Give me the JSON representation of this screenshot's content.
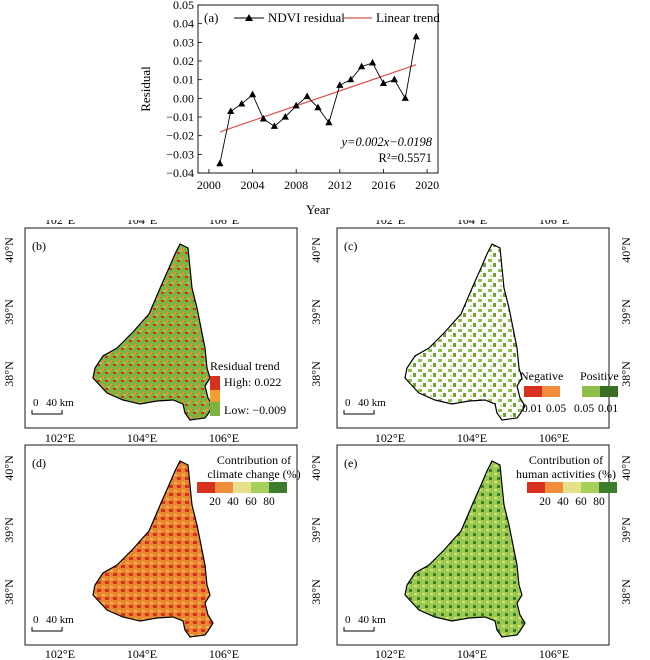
{
  "chart_data": [
    {
      "type": "line",
      "panel_label": "(a)",
      "xlabel": "Year",
      "ylabel": "Residual",
      "xlim": [
        1999,
        2021
      ],
      "ylim": [
        -0.04,
        0.05
      ],
      "xticks": [
        "2000",
        "2004",
        "2008",
        "2012",
        "2016",
        "2020"
      ],
      "yticks": [
        "−0.04",
        "−0.03",
        "−0.02",
        "−0.01",
        "0.00",
        "0.01",
        "0.02",
        "0.03",
        "0.04",
        "0.05"
      ],
      "legend": {
        "placement": "top",
        "items": [
          "NDVI residual",
          "Linear trend"
        ]
      },
      "equation": "y=0.002x−0.0198",
      "r2": "R²=0.5571",
      "series": [
        {
          "name": "NDVI residual",
          "color": "#000000",
          "marker": "triangle",
          "x": [
            2001,
            2002,
            2003,
            2004,
            2005,
            2006,
            2007,
            2008,
            2009,
            2010,
            2011,
            2012,
            2013,
            2014,
            2015,
            2016,
            2017,
            2018,
            2019
          ],
          "values": [
            -0.035,
            -0.007,
            -0.003,
            0.002,
            -0.011,
            -0.015,
            -0.01,
            -0.004,
            0.001,
            -0.005,
            -0.013,
            0.007,
            0.01,
            0.017,
            0.019,
            0.008,
            0.01,
            0.0,
            0.033
          ]
        },
        {
          "name": "Linear trend",
          "color": "#d9534f",
          "x": [
            2001,
            2019
          ],
          "values": [
            -0.018,
            0.018
          ]
        }
      ]
    }
  ],
  "maps": {
    "lon_labels": [
      "102°E",
      "104°E",
      "106°E"
    ],
    "lat_labels": [
      "40°N",
      "39°N",
      "38°N"
    ],
    "scale_zero": "0",
    "scale_text": "40 km",
    "panel_b": {
      "label": "(b)",
      "legend_title": "Residual trend",
      "high": "High: 0.022",
      "low": "Low: −0.009"
    },
    "panel_c": {
      "label": "(c)",
      "negative": "Negative",
      "positive": "Positive",
      "ticks": [
        "0.01",
        "0.05",
        "0.05",
        "0.01"
      ]
    },
    "panel_d": {
      "label": "(d)",
      "title1": "Contribution of",
      "title2": "climate change (%)",
      "ticks": [
        "20",
        "40",
        "60",
        "80"
      ]
    },
    "panel_e": {
      "label": "(e)",
      "title1": "Contribution of",
      "title2": "human activities (%)",
      "ticks": [
        "20",
        "40",
        "60",
        "80"
      ]
    }
  },
  "colors": {
    "ramp": [
      "#d7301f",
      "#f08c3a",
      "#e6e08a",
      "#a6d05a",
      "#3b7d2b"
    ],
    "neg_dark": "#d7301f",
    "neg_light": "#f08c3a",
    "pos_light": "#8fbf4a",
    "pos_dark": "#3b6e25",
    "trend": "#d9534f"
  }
}
